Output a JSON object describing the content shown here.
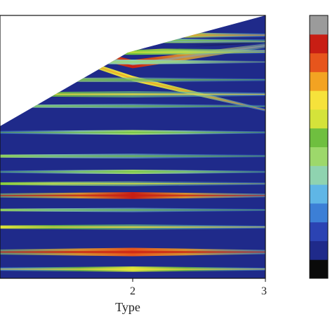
{
  "chart_data": {
    "type": "heatmap",
    "title": "",
    "xlabel": "Type",
    "ylabel": "",
    "x_ticks": [
      2,
      3
    ],
    "x_range": [
      1,
      3
    ],
    "grid": false,
    "colormap": [
      "#0a0a0a",
      "#1f2a8a",
      "#2b43b3",
      "#3c7fd6",
      "#5fb6e6",
      "#8fd3b0",
      "#9dd86b",
      "#6fbf3f",
      "#d4e33a",
      "#f6e23b",
      "#f3a322",
      "#e7551c",
      "#c81e14",
      "#9b9b9b"
    ],
    "colorbar_labels": [],
    "bands": [
      {
        "left_y": 0.93,
        "mid_y": 0.76,
        "right_y": 0.64,
        "half_width": 0.01,
        "level": 0.72,
        "peak_x": 2
      },
      {
        "left_y": 0.935,
        "mid_y": 0.815,
        "right_y": 0.885,
        "half_width": 0.016,
        "level": 0.93,
        "peak_x": 2
      },
      {
        "left_y": 0.935,
        "mid_y": 0.865,
        "right_y": 0.865,
        "half_width": 0.01,
        "level": 0.6,
        "peak_x": 2
      },
      {
        "left_y": 0.93,
        "mid_y": 0.875,
        "right_y": 0.9,
        "half_width": 0.008,
        "level": 0.05,
        "peak_x": 2
      },
      {
        "left_y": 0.93,
        "mid_y": 0.905,
        "right_y": 0.9,
        "half_width": 0.01,
        "level": 0.55,
        "peak_x": 2
      },
      {
        "left_y": 0.92,
        "mid_y": 0.925,
        "right_y": 0.925,
        "half_width": 0.012,
        "level": 0.68,
        "peak_x": 2
      },
      {
        "left_y": 0.905,
        "mid_y": 0.905,
        "right_y": 0.905,
        "half_width": 0.008,
        "level": 0.48,
        "peak_x": 1
      },
      {
        "left_y": 0.86,
        "mid_y": 0.86,
        "right_y": 0.86,
        "half_width": 0.01,
        "level": 0.55,
        "peak_x": 2
      },
      {
        "left_y": 0.823,
        "mid_y": 0.823,
        "right_y": 0.823,
        "half_width": 0.009,
        "level": 0.42,
        "peak_x": 2
      },
      {
        "left_y": 0.755,
        "mid_y": 0.755,
        "right_y": 0.755,
        "half_width": 0.009,
        "level": 0.5,
        "peak_x": 1
      },
      {
        "left_y": 0.7,
        "mid_y": 0.7,
        "right_y": 0.7,
        "half_width": 0.012,
        "level": 0.6,
        "peak_x": 1
      },
      {
        "left_y": 0.655,
        "mid_y": 0.655,
        "right_y": 0.655,
        "half_width": 0.008,
        "level": 0.46,
        "peak_x": 1
      },
      {
        "left_y": 0.555,
        "mid_y": 0.555,
        "right_y": 0.555,
        "half_width": 0.009,
        "level": 0.46,
        "peak_x": 2
      },
      {
        "left_y": 0.465,
        "mid_y": 0.465,
        "right_y": 0.465,
        "half_width": 0.009,
        "level": 0.45,
        "peak_x": 1
      },
      {
        "left_y": 0.405,
        "mid_y": 0.405,
        "right_y": 0.405,
        "half_width": 0.008,
        "level": 0.44,
        "peak_x": 2
      },
      {
        "left_y": 0.36,
        "mid_y": 0.36,
        "right_y": 0.36,
        "half_width": 0.009,
        "level": 0.52,
        "peak_x": 1
      },
      {
        "left_y": 0.315,
        "mid_y": 0.315,
        "right_y": 0.315,
        "half_width": 0.013,
        "level": 0.9,
        "peak_x": 2
      },
      {
        "left_y": 0.26,
        "mid_y": 0.26,
        "right_y": 0.26,
        "half_width": 0.008,
        "level": 0.46,
        "peak_x": 1
      },
      {
        "left_y": 0.195,
        "mid_y": 0.195,
        "right_y": 0.195,
        "half_width": 0.01,
        "level": 0.62,
        "peak_x": 1
      },
      {
        "left_y": 0.1,
        "mid_y": 0.1,
        "right_y": 0.1,
        "half_width": 0.016,
        "level": 0.88,
        "peak_x": 2
      },
      {
        "left_y": 0.035,
        "mid_y": 0.035,
        "right_y": 0.035,
        "half_width": 0.01,
        "level": 0.6,
        "peak_x": 2
      }
    ]
  }
}
